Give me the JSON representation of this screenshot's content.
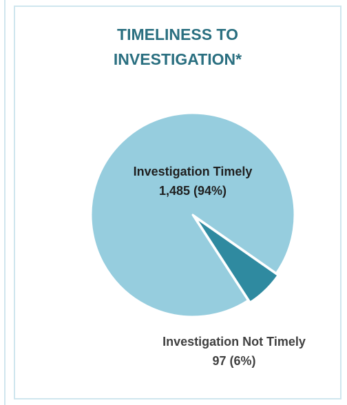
{
  "colors": {
    "border": "#cfe6ee",
    "title": "#2a6f80",
    "slice_timely": "#96cdde",
    "slice_not_timely": "#2f8aa0"
  },
  "chart_data": {
    "type": "pie",
    "title": "TIMELINESS TO INVESTIGATION*",
    "title_lines": [
      "TIMELINESS TO",
      "INVESTIGATION*"
    ],
    "slices": [
      {
        "label": "Investigation Timely",
        "value": 1485,
        "display_value": "1,485 (94%)",
        "percent": 94,
        "color": "#96cdde"
      },
      {
        "label": "Investigation Not Timely",
        "value": 97,
        "display_value": "97 (6%)",
        "percent": 6,
        "color": "#2f8aa0"
      }
    ]
  }
}
